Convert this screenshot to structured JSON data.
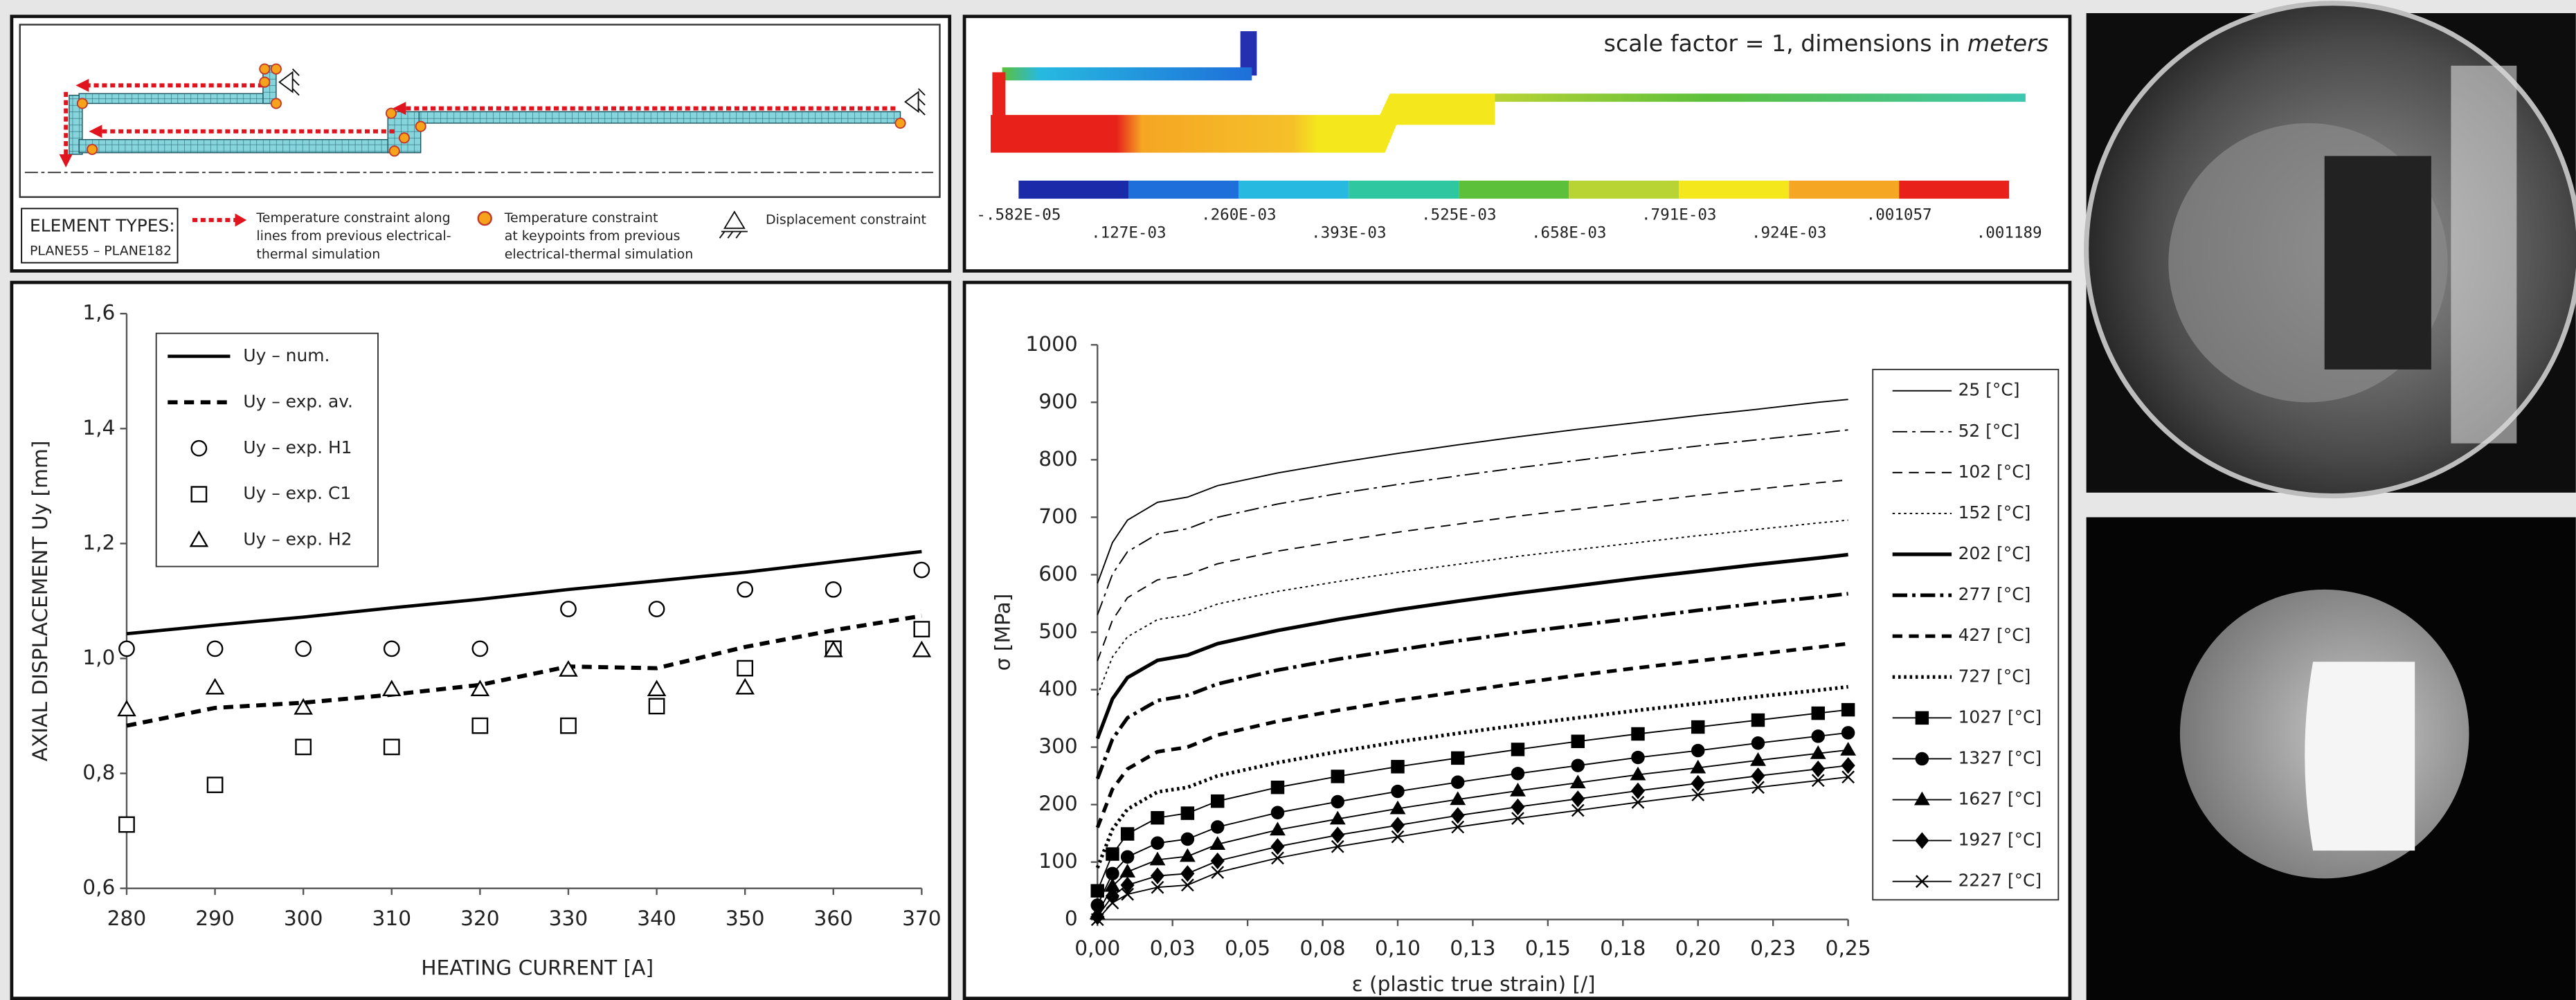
{
  "panel_a": {
    "element_types_title": "ELEMENT TYPES:",
    "element_types": "PLANE55 – PLANE182",
    "line_constraint": [
      "Temperature constraint along",
      "lines from previous electrical-",
      "thermal simulation"
    ],
    "point_constraint": [
      "Temperature constraint",
      "at keypoints from previous",
      "electrical-thermal simulation"
    ],
    "displacement_constraint": "Displacement constraint"
  },
  "panel_b": {
    "note": "scale factor = 1, dimensions in ",
    "note_unit": "meters",
    "legend_labels": [
      "-.582E-05",
      ".127E-03",
      ".260E-03",
      ".393E-03",
      ".525E-03",
      ".658E-03",
      ".791E-03",
      ".924E-03",
      ".001057",
      ".001189"
    ]
  },
  "chart_data": [
    {
      "type": "line",
      "xlabel": "HEATING CURRENT [A]",
      "ylabel": "AXIAL DISPLACEMENT Uy [mm]",
      "x": [
        280,
        290,
        300,
        310,
        320,
        330,
        340,
        350,
        360,
        370
      ],
      "xlim": [
        280,
        370
      ],
      "xticks": [
        280,
        290,
        300,
        310,
        320,
        330,
        340,
        350,
        360,
        370
      ],
      "ylim": [
        0.6,
        1.6
      ],
      "yticks": [
        {
          "value": 0.6,
          "label": "0,6"
        },
        {
          "value": 0.8,
          "label": "0,8"
        },
        {
          "value": 1.0,
          "label": "1,0"
        },
        {
          "value": 1.2,
          "label": "1,2"
        },
        {
          "value": 1.4,
          "label": "1,4"
        },
        {
          "value": 1.6,
          "label": "1,6"
        }
      ],
      "legend": "upper left",
      "series": [
        {
          "name": "Uy – num.",
          "color": "#000000",
          "style": "solid",
          "width": 2,
          "values": [
            1.043,
            1.058,
            1.072,
            1.088,
            1.103,
            1.12,
            1.135,
            1.15,
            1.168,
            1.186
          ]
        },
        {
          "name": "Uy – exp. av.",
          "color": "#000000",
          "style": "dashed",
          "width": 2.5,
          "values": [
            0.883,
            0.914,
            0.923,
            0.937,
            0.954,
            0.986,
            0.983,
            1.02,
            1.049,
            1.074
          ]
        },
        {
          "name": "Uy – exp. H1",
          "color": "#000000",
          "marker": "circle",
          "marker_fill": "#ffffff",
          "values": [
            1.017,
            1.017,
            1.017,
            1.017,
            1.017,
            1.086,
            1.086,
            1.12,
            1.12,
            1.154
          ]
        },
        {
          "name": "Uy – exp. C1",
          "color": "#000000",
          "marker": "square",
          "marker_fill": "#ffffff",
          "values": [
            0.711,
            0.78,
            0.846,
            0.846,
            0.883,
            0.883,
            0.917,
            0.983,
            1.017,
            1.051
          ]
        },
        {
          "name": "Uy – exp. H2",
          "color": "#000000",
          "marker": "triangle",
          "marker_fill": "#ffffff",
          "values": [
            0.911,
            0.949,
            0.914,
            0.946,
            0.946,
            0.98,
            0.946,
            0.949,
            1.014,
            1.014
          ]
        }
      ]
    },
    {
      "type": "line",
      "xlabel": "ε (plastic true strain) [/]",
      "ylabel": "σ [MPa]",
      "x": [
        0,
        0.005,
        0.01,
        0.02,
        0.03,
        0.04,
        0.06,
        0.08,
        0.1,
        0.12,
        0.14,
        0.16,
        0.18,
        0.2,
        0.22,
        0.24,
        0.25
      ],
      "xlim": [
        0,
        0.25
      ],
      "xticks": [
        {
          "value": 0,
          "label": "0,00"
        },
        {
          "value": 0.025,
          "label": "0,03"
        },
        {
          "value": 0.05,
          "label": "0,05"
        },
        {
          "value": 0.075,
          "label": "0,08"
        },
        {
          "value": 0.1,
          "label": "0,10"
        },
        {
          "value": 0.125,
          "label": "0,13"
        },
        {
          "value": 0.15,
          "label": "0,15"
        },
        {
          "value": 0.175,
          "label": "0,18"
        },
        {
          "value": 0.2,
          "label": "0,20"
        },
        {
          "value": 0.225,
          "label": "0,23"
        },
        {
          "value": 0.25,
          "label": "0,25"
        }
      ],
      "ylim": [
        0,
        1000
      ],
      "yticks": [
        0,
        100,
        200,
        300,
        400,
        500,
        600,
        700,
        800,
        900,
        1000
      ],
      "legend": "right",
      "series": [
        {
          "name": "25 [°C]",
          "color": "#000000",
          "style": "solid",
          "width": 0.8,
          "values": [
            585,
            656,
            695,
            726,
            735,
            755,
            777,
            795,
            811,
            826,
            840,
            853,
            865,
            877,
            888,
            900,
            905
          ]
        },
        {
          "name": "52 [°C]",
          "color": "#000000",
          "style": "dash-dot",
          "width": 0.8,
          "values": [
            530,
            601,
            640,
            671,
            680,
            700,
            723,
            741,
            757,
            772,
            786,
            799,
            812,
            824,
            835,
            846,
            852
          ]
        },
        {
          "name": "102 [°C]",
          "color": "#000000",
          "style": "dashed",
          "width": 0.8,
          "values": [
            450,
            521,
            560,
            591,
            600,
            619,
            641,
            658,
            674,
            688,
            702,
            714,
            726,
            738,
            749,
            760,
            765
          ]
        },
        {
          "name": "152 [°C]",
          "color": "#000000",
          "style": "dotted",
          "width": 0.8,
          "values": [
            390,
            457,
            492,
            522,
            530,
            549,
            571,
            588,
            604,
            618,
            632,
            644,
            656,
            668,
            679,
            690,
            695
          ]
        },
        {
          "name": "202 [°C]",
          "color": "#000000",
          "style": "solid",
          "width": 2.2,
          "values": [
            315,
            384,
            421,
            451,
            460,
            480,
            503,
            522,
            539,
            554,
            568,
            581,
            594,
            606,
            618,
            629,
            635
          ]
        },
        {
          "name": "277 [°C]",
          "color": "#000000",
          "style": "dash-dot",
          "width": 2.2,
          "values": [
            245,
            314,
            351,
            381,
            390,
            410,
            434,
            453,
            469,
            485,
            499,
            512,
            525,
            538,
            550,
            561,
            567
          ]
        },
        {
          "name": "427 [°C]",
          "color": "#000000",
          "style": "dashed",
          "width": 2.2,
          "values": [
            160,
            227,
            262,
            292,
            300,
            321,
            345,
            364,
            381,
            396,
            411,
            425,
            438,
            450,
            462,
            474,
            480
          ]
        },
        {
          "name": "727 [°C]",
          "color": "#000000",
          "style": "dotted",
          "width": 2.2,
          "values": [
            90,
            157,
            192,
            222,
            230,
            250,
            273,
            292,
            309,
            324,
            338,
            351,
            364,
            376,
            388,
            399,
            405
          ]
        },
        {
          "name": "1027 [°C]",
          "color": "#000000",
          "style": "solid",
          "width": 0.8,
          "marker": "square",
          "marker_fill": "#000000",
          "values": [
            50,
            114,
            149,
            177,
            185,
            206,
            230,
            249,
            266,
            281,
            296,
            310,
            323,
            335,
            347,
            359,
            365
          ]
        },
        {
          "name": "1327 [°C]",
          "color": "#000000",
          "style": "solid",
          "width": 0.8,
          "marker": "circle",
          "marker_fill": "#000000",
          "values": [
            25,
            80,
            109,
            133,
            140,
            161,
            186,
            205,
            223,
            239,
            254,
            268,
            282,
            294,
            307,
            319,
            325
          ]
        },
        {
          "name": "1627 [°C]",
          "color": "#000000",
          "style": "solid",
          "width": 0.8,
          "marker": "triangle",
          "marker_fill": "#000000",
          "values": [
            10,
            58,
            83,
            104,
            110,
            131,
            156,
            175,
            193,
            209,
            224,
            238,
            252,
            264,
            277,
            289,
            295
          ]
        },
        {
          "name": "1927 [°C]",
          "color": "#000000",
          "style": "solid",
          "width": 0.8,
          "marker": "diamond",
          "marker_fill": "#000000",
          "values": [
            5,
            41,
            60,
            76,
            80,
            102,
            127,
            147,
            164,
            181,
            196,
            210,
            224,
            237,
            250,
            262,
            268
          ]
        },
        {
          "name": "2227 [°C]",
          "color": "#000000",
          "style": "solid",
          "width": 0.8,
          "marker": "star",
          "marker_fill": "#000000",
          "values": [
            0,
            29,
            44,
            56,
            60,
            82,
            107,
            127,
            144,
            161,
            176,
            190,
            204,
            217,
            230,
            242,
            248
          ]
        }
      ]
    }
  ]
}
